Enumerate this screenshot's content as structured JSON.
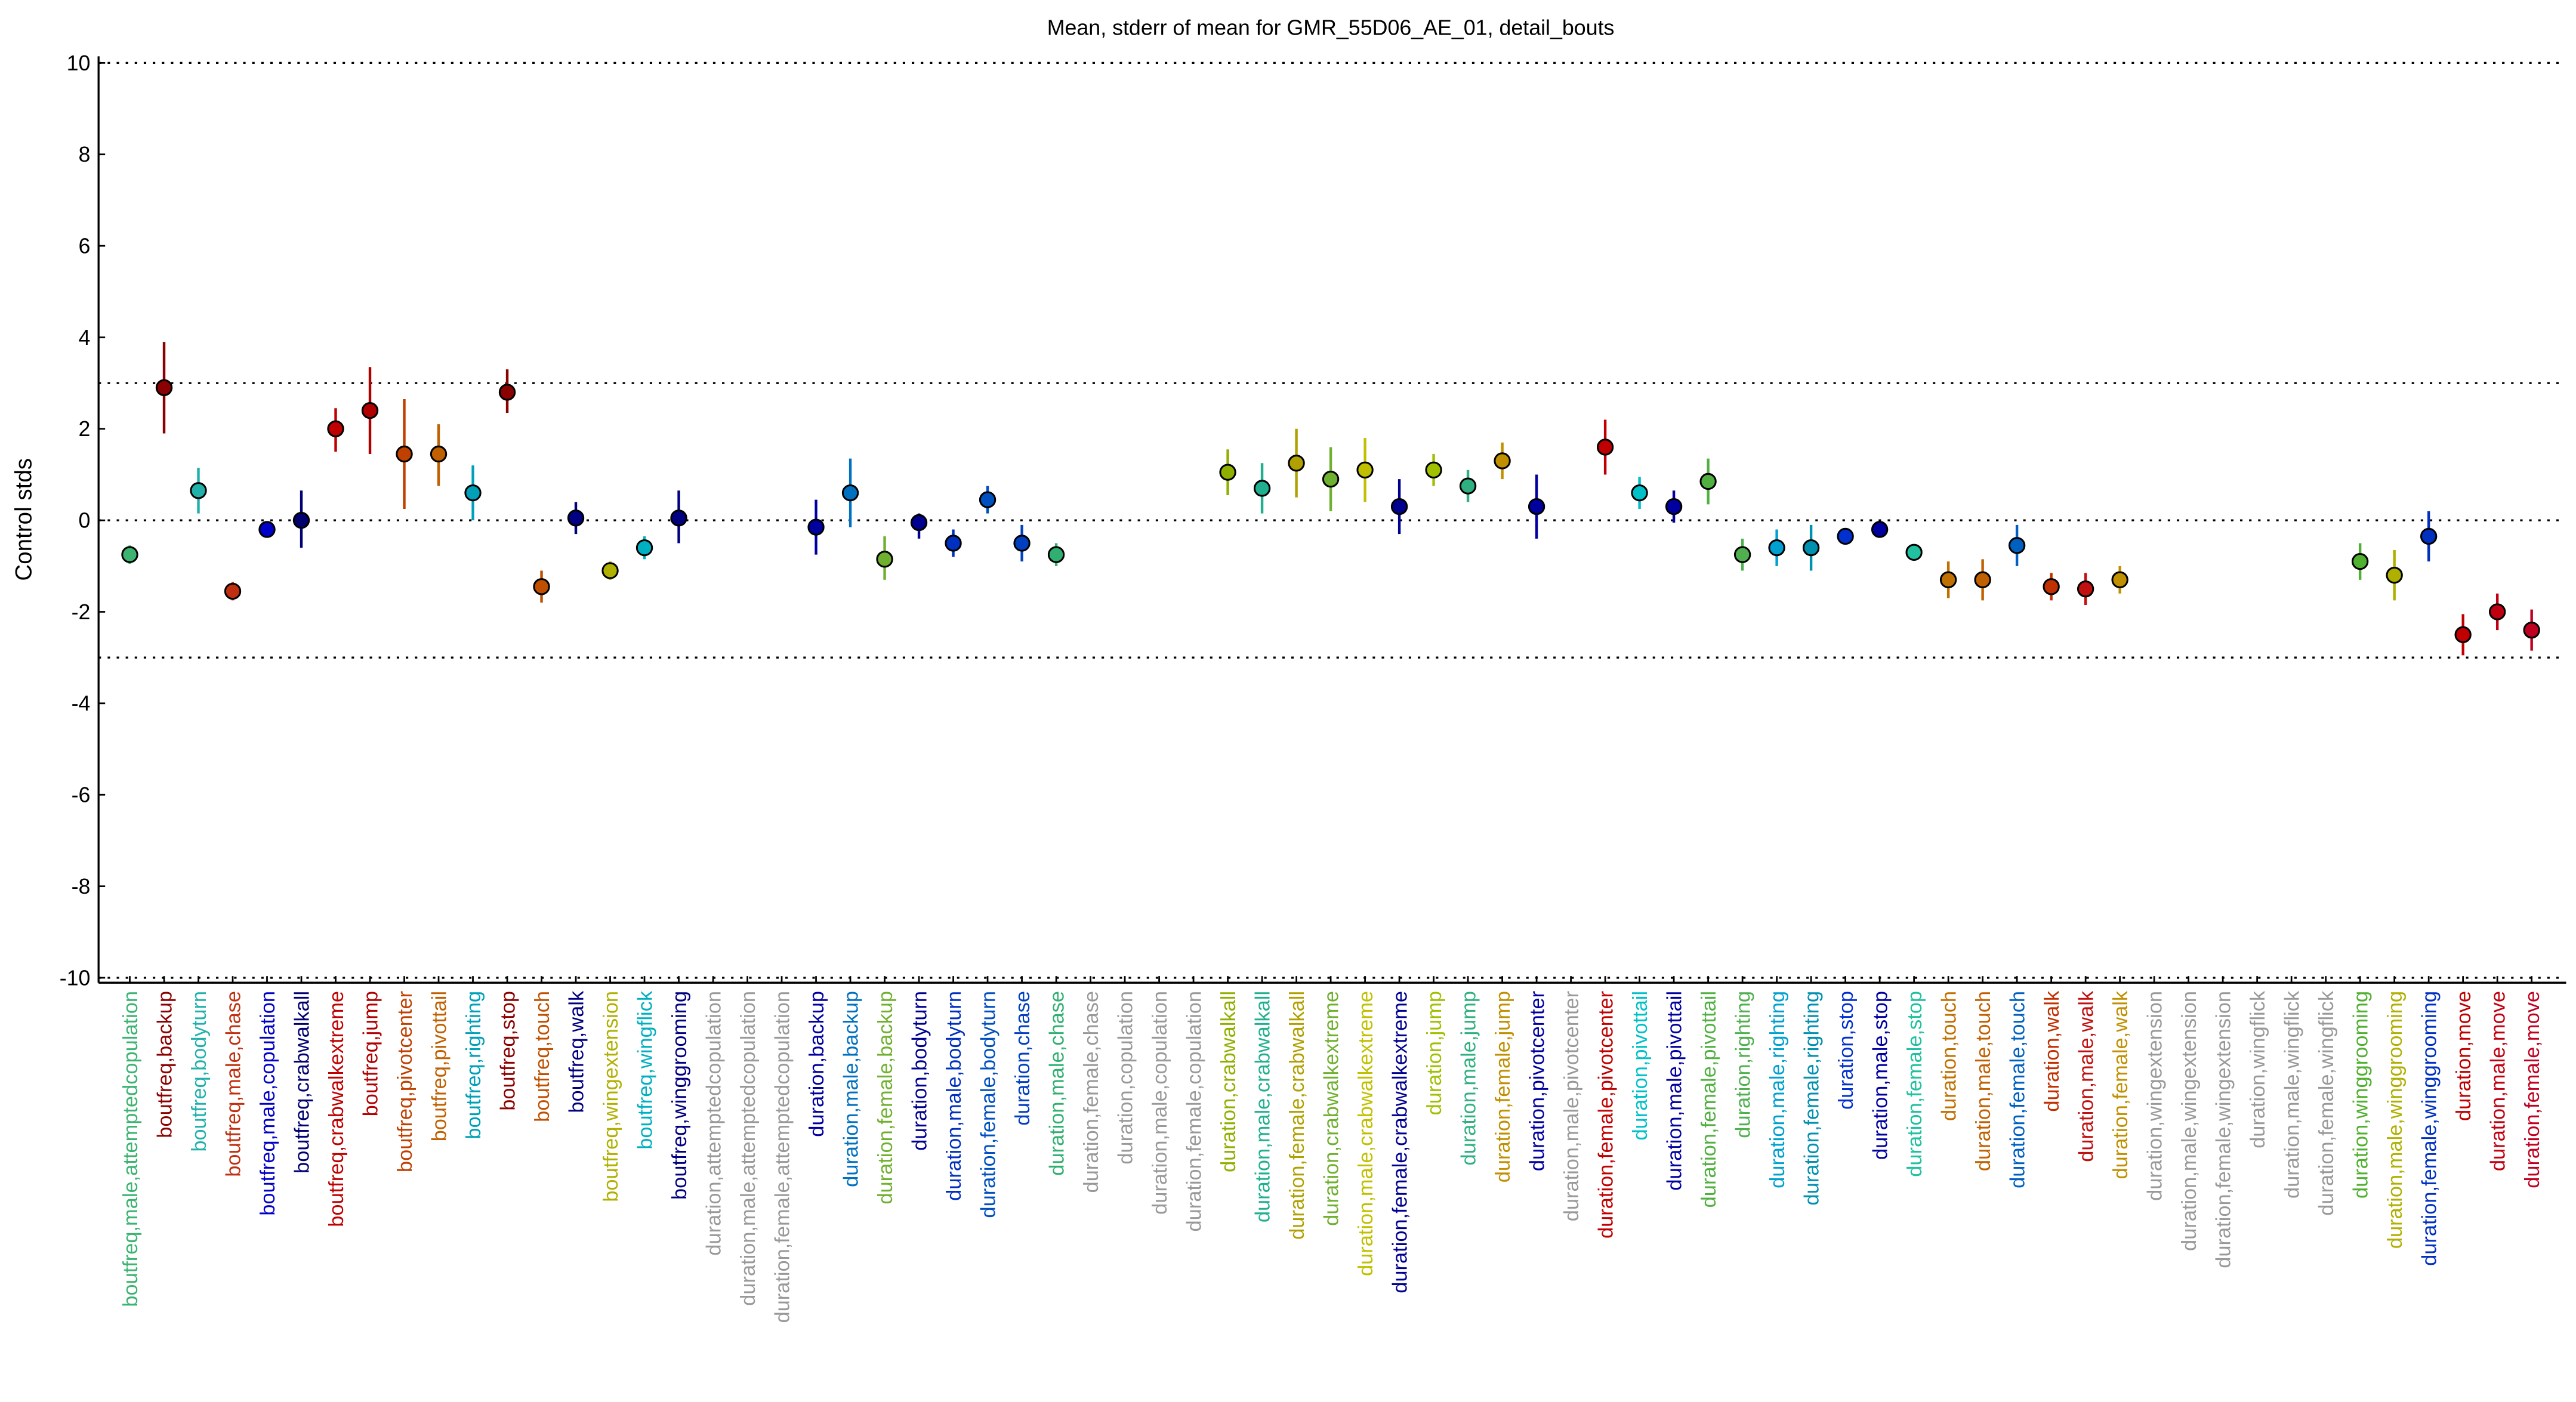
{
  "chart_data": {
    "type": "scatter",
    "title": "Mean, stderr of mean for GMR_55D06_AE_01, detail_bouts",
    "xlabel": "",
    "ylabel": "Control stds",
    "ylim": [
      -10,
      10
    ],
    "yticks": [
      -10,
      -8,
      -6,
      -4,
      -2,
      0,
      2,
      4,
      6,
      8,
      10
    ],
    "reference_lines": [
      -10,
      -3,
      0,
      3,
      10
    ],
    "grid": false,
    "categories": [
      {
        "label": "boutfreq,male,attemptedcopulation",
        "color": "#3cb371",
        "mean": -0.75,
        "lo": -0.95,
        "hi": -0.55
      },
      {
        "label": "boutfreq,backup",
        "color": "#8b0000",
        "mean": 2.9,
        "lo": 1.9,
        "hi": 3.9
      },
      {
        "label": "boutfreq,bodyturn",
        "color": "#20b2aa",
        "mean": 0.65,
        "lo": 0.15,
        "hi": 1.15
      },
      {
        "label": "boutfreq,male,chase",
        "color": "#c03010",
        "mean": -1.55,
        "lo": -1.75,
        "hi": -1.35
      },
      {
        "label": "boutfreq,male,copulation",
        "color": "#0000c8",
        "mean": -0.2,
        "lo": -0.35,
        "hi": -0.05
      },
      {
        "label": "boutfreq,crabwalkall",
        "color": "#000070",
        "mean": 0.0,
        "lo": -0.6,
        "hi": 0.65
      },
      {
        "label": "boutfreq,crabwalkextreme",
        "color": "#c00000",
        "mean": 2.0,
        "lo": 1.5,
        "hi": 2.45
      },
      {
        "label": "boutfreq,jump",
        "color": "#b00000",
        "mean": 2.4,
        "lo": 1.45,
        "hi": 3.35
      },
      {
        "label": "boutfreq,pivotcenter",
        "color": "#c04000",
        "mean": 1.45,
        "lo": 0.25,
        "hi": 2.65
      },
      {
        "label": "boutfreq,pivottail",
        "color": "#c06000",
        "mean": 1.45,
        "lo": 0.75,
        "hi": 2.1
      },
      {
        "label": "boutfreq,righting",
        "color": "#00a0b8",
        "mean": 0.6,
        "lo": 0.0,
        "hi": 1.2
      },
      {
        "label": "boutfreq,stop",
        "color": "#8b0000",
        "mean": 2.8,
        "lo": 2.35,
        "hi": 3.3
      },
      {
        "label": "boutfreq,touch",
        "color": "#c05000",
        "mean": -1.45,
        "lo": -1.8,
        "hi": -1.1
      },
      {
        "label": "boutfreq,walk",
        "color": "#000080",
        "mean": 0.05,
        "lo": -0.3,
        "hi": 0.4
      },
      {
        "label": "boutfreq,wingextension",
        "color": "#b0b000",
        "mean": -1.1,
        "lo": -1.3,
        "hi": -0.9
      },
      {
        "label": "boutfreq,wingflick",
        "color": "#00b0c0",
        "mean": -0.6,
        "lo": -0.85,
        "hi": -0.35
      },
      {
        "label": "boutfreq,winggrooming",
        "color": "#000080",
        "mean": 0.05,
        "lo": -0.5,
        "hi": 0.65
      },
      {
        "label": "duration,attemptedcopulation",
        "color": "#999999",
        "mean": null,
        "lo": null,
        "hi": null
      },
      {
        "label": "duration,male,attemptedcopulation",
        "color": "#999999",
        "mean": null,
        "lo": null,
        "hi": null
      },
      {
        "label": "duration,female,attemptedcopulation",
        "color": "#999999",
        "mean": null,
        "lo": null,
        "hi": null
      },
      {
        "label": "duration,backup",
        "color": "#0000a0",
        "mean": -0.15,
        "lo": -0.75,
        "hi": 0.45
      },
      {
        "label": "duration,male,backup",
        "color": "#0070c0",
        "mean": 0.6,
        "lo": -0.15,
        "hi": 1.35
      },
      {
        "label": "duration,female,backup",
        "color": "#70b030",
        "mean": -0.85,
        "lo": -1.3,
        "hi": -0.35
      },
      {
        "label": "duration,bodyturn",
        "color": "#000090",
        "mean": -0.05,
        "lo": -0.4,
        "hi": 0.15
      },
      {
        "label": "duration,male,bodyturn",
        "color": "#0030c0",
        "mean": -0.5,
        "lo": -0.8,
        "hi": -0.2
      },
      {
        "label": "duration,female,bodyturn",
        "color": "#0050c0",
        "mean": 0.45,
        "lo": 0.15,
        "hi": 0.75
      },
      {
        "label": "duration,chase",
        "color": "#0040c0",
        "mean": -0.5,
        "lo": -0.9,
        "hi": -0.1
      },
      {
        "label": "duration,male,chase",
        "color": "#30b070",
        "mean": -0.75,
        "lo": -1.0,
        "hi": -0.5
      },
      {
        "label": "duration,female,chase",
        "color": "#999999",
        "mean": null,
        "lo": null,
        "hi": null
      },
      {
        "label": "duration,copulation",
        "color": "#999999",
        "mean": null,
        "lo": null,
        "hi": null
      },
      {
        "label": "duration,male,copulation",
        "color": "#999999",
        "mean": null,
        "lo": null,
        "hi": null
      },
      {
        "label": "duration,female,copulation",
        "color": "#999999",
        "mean": null,
        "lo": null,
        "hi": null
      },
      {
        "label": "duration,crabwalkall",
        "color": "#90b000",
        "mean": 1.05,
        "lo": 0.55,
        "hi": 1.55
      },
      {
        "label": "duration,male,crabwalkall",
        "color": "#20b090",
        "mean": 0.7,
        "lo": 0.15,
        "hi": 1.25
      },
      {
        "label": "duration,female,crabwalkall",
        "color": "#b0a000",
        "mean": 1.25,
        "lo": 0.5,
        "hi": 2.0
      },
      {
        "label": "duration,crabwalkextreme",
        "color": "#70b030",
        "mean": 0.9,
        "lo": 0.2,
        "hi": 1.6
      },
      {
        "label": "duration,male,crabwalkextreme",
        "color": "#c0c000",
        "mean": 1.1,
        "lo": 0.4,
        "hi": 1.8
      },
      {
        "label": "duration,female,crabwalkextreme",
        "color": "#000090",
        "mean": 0.3,
        "lo": -0.3,
        "hi": 0.9
      },
      {
        "label": "duration,jump",
        "color": "#a0c000",
        "mean": 1.1,
        "lo": 0.75,
        "hi": 1.45
      },
      {
        "label": "duration,male,jump",
        "color": "#30b080",
        "mean": 0.75,
        "lo": 0.4,
        "hi": 1.1
      },
      {
        "label": "duration,female,jump",
        "color": "#c09000",
        "mean": 1.3,
        "lo": 0.9,
        "hi": 1.7
      },
      {
        "label": "duration,pivotcenter",
        "color": "#0000a0",
        "mean": 0.3,
        "lo": -0.4,
        "hi": 1.0
      },
      {
        "label": "duration,male,pivotcenter",
        "color": "#999999",
        "mean": null,
        "lo": null,
        "hi": null
      },
      {
        "label": "duration,female,pivotcenter",
        "color": "#c00000",
        "mean": 1.6,
        "lo": 1.0,
        "hi": 2.2
      },
      {
        "label": "duration,pivottail",
        "color": "#00c0c8",
        "mean": 0.6,
        "lo": 0.25,
        "hi": 0.95
      },
      {
        "label": "duration,male,pivottail",
        "color": "#0000a0",
        "mean": 0.3,
        "lo": -0.05,
        "hi": 0.65
      },
      {
        "label": "duration,female,pivottail",
        "color": "#50b040",
        "mean": 0.85,
        "lo": 0.35,
        "hi": 1.35
      },
      {
        "label": "duration,righting",
        "color": "#50b050",
        "mean": -0.75,
        "lo": -1.1,
        "hi": -0.4
      },
      {
        "label": "duration,male,righting",
        "color": "#00a0d0",
        "mean": -0.6,
        "lo": -1.0,
        "hi": -0.2
      },
      {
        "label": "duration,female,righting",
        "color": "#0090b0",
        "mean": -0.6,
        "lo": -1.1,
        "hi": -0.1
      },
      {
        "label": "duration,stop",
        "color": "#0030d0",
        "mean": -0.35,
        "lo": -0.5,
        "hi": -0.2
      },
      {
        "label": "duration,male,stop",
        "color": "#0000a0",
        "mean": -0.2,
        "lo": -0.35,
        "hi": -0.05
      },
      {
        "label": "duration,female,stop",
        "color": "#20c0a0",
        "mean": -0.7,
        "lo": -0.85,
        "hi": -0.55
      },
      {
        "label": "duration,touch",
        "color": "#c07000",
        "mean": -1.3,
        "lo": -1.7,
        "hi": -0.9
      },
      {
        "label": "duration,male,touch",
        "color": "#c06000",
        "mean": -1.3,
        "lo": -1.75,
        "hi": -0.85
      },
      {
        "label": "duration,female,touch",
        "color": "#0060c0",
        "mean": -0.55,
        "lo": -1.0,
        "hi": -0.1
      },
      {
        "label": "duration,walk",
        "color": "#c03000",
        "mean": -1.45,
        "lo": -1.75,
        "hi": -1.15
      },
      {
        "label": "duration,male,walk",
        "color": "#c01010",
        "mean": -1.5,
        "lo": -1.85,
        "hi": -1.15
      },
      {
        "label": "duration,female,walk",
        "color": "#c09000",
        "mean": -1.3,
        "lo": -1.6,
        "hi": -1.0
      },
      {
        "label": "duration,wingextension",
        "color": "#999999",
        "mean": null,
        "lo": null,
        "hi": null
      },
      {
        "label": "duration,male,wingextension",
        "color": "#999999",
        "mean": null,
        "lo": null,
        "hi": null
      },
      {
        "label": "duration,female,wingextension",
        "color": "#999999",
        "mean": null,
        "lo": null,
        "hi": null
      },
      {
        "label": "duration,wingflick",
        "color": "#999999",
        "mean": null,
        "lo": null,
        "hi": null
      },
      {
        "label": "duration,male,wingflick",
        "color": "#999999",
        "mean": null,
        "lo": null,
        "hi": null
      },
      {
        "label": "duration,female,wingflick",
        "color": "#999999",
        "mean": null,
        "lo": null,
        "hi": null
      },
      {
        "label": "duration,winggrooming",
        "color": "#50b030",
        "mean": -0.9,
        "lo": -1.3,
        "hi": -0.5
      },
      {
        "label": "duration,male,winggrooming",
        "color": "#b0b000",
        "mean": -1.2,
        "lo": -1.75,
        "hi": -0.65
      },
      {
        "label": "duration,female,winggrooming",
        "color": "#0030c0",
        "mean": -0.35,
        "lo": -0.9,
        "hi": 0.2
      },
      {
        "label": "duration,move",
        "color": "#c00000",
        "mean": -2.5,
        "lo": -2.95,
        "hi": -2.05
      },
      {
        "label": "duration,male,move",
        "color": "#c00010",
        "mean": -2.0,
        "lo": -2.4,
        "hi": -1.6
      },
      {
        "label": "duration,female,move",
        "color": "#c00020",
        "mean": -2.4,
        "lo": -2.85,
        "hi": -1.95
      }
    ]
  }
}
